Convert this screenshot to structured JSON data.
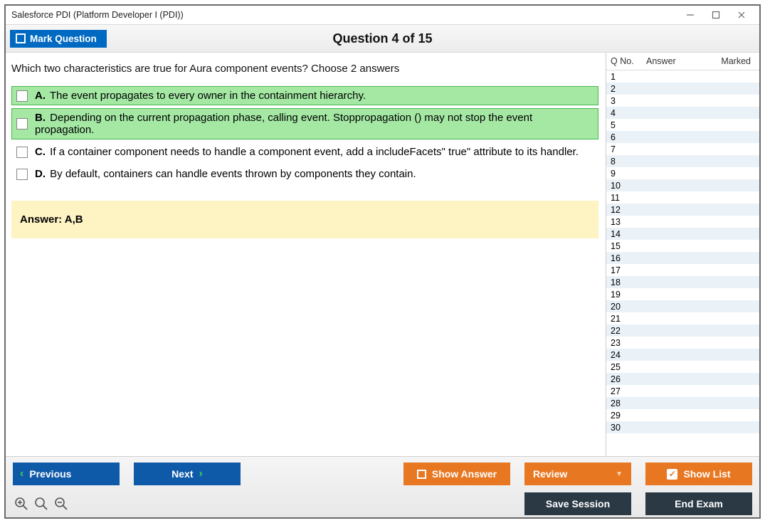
{
  "window": {
    "title": "Salesforce PDI (Platform Developer I (PDI))"
  },
  "topbar": {
    "mark_label": "Mark Question",
    "counter": "Question 4 of 15"
  },
  "question": {
    "prompt": "Which two characteristics are true for Aura component events? Choose 2 answers",
    "choices": [
      {
        "letter": "A.",
        "text": "The event propagates to every owner in the containment hierarchy.",
        "correct": true
      },
      {
        "letter": "B.",
        "text": "Depending on the current propagation phase, calling event. Stoppropagation () may not stop the event propagation.",
        "correct": true
      },
      {
        "letter": "C.",
        "text": "If a container component needs to handle a component event, add a includeFacets\" true\" attribute to its handler.",
        "correct": false
      },
      {
        "letter": "D.",
        "text": "By default, containers can handle events thrown by components they contain.",
        "correct": false
      }
    ],
    "answer_label": "Answer: A,B"
  },
  "sidebar": {
    "head_qno": "Q No.",
    "head_answer": "Answer",
    "head_marked": "Marked",
    "row_count": 30
  },
  "buttons": {
    "previous": "Previous",
    "next": "Next",
    "show_answer": "Show Answer",
    "review": "Review",
    "show_list": "Show List",
    "save_session": "Save Session",
    "end_exam": "End Exam"
  },
  "colors": {
    "blue": "#0f5aa8",
    "orange": "#e87722",
    "dark": "#2b3945",
    "correct_bg": "#a4e8a4",
    "answer_bg": "#fdf3c3"
  }
}
